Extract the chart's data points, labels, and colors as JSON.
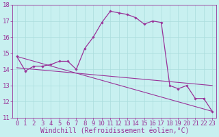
{
  "xlabel": "Windchill (Refroidissement éolien,°C)",
  "background_color": "#c8f0f0",
  "line_color": "#993399",
  "hours": [
    0,
    1,
    2,
    3,
    4,
    5,
    6,
    7,
    8,
    9,
    10,
    11,
    12,
    13,
    14,
    15,
    16,
    17,
    18,
    19,
    20,
    21,
    22,
    23
  ],
  "windchill": [
    14.8,
    13.9,
    14.2,
    14.2,
    14.3,
    14.5,
    14.5,
    14.0,
    15.3,
    16.0,
    16.9,
    17.6,
    17.5,
    17.4,
    17.2,
    16.8,
    17.0,
    16.9,
    13.0,
    12.8,
    13.0,
    12.2,
    12.2,
    11.4
  ],
  "trend1_start": 14.8,
  "trend1_end": 11.4,
  "trend2_start": 14.1,
  "trend2_end": 13.0,
  "ylim": [
    11,
    18
  ],
  "yticks": [
    11,
    12,
    13,
    14,
    15,
    16,
    17,
    18
  ],
  "xticks": [
    0,
    1,
    2,
    3,
    4,
    5,
    6,
    7,
    8,
    9,
    10,
    11,
    12,
    13,
    14,
    15,
    16,
    17,
    18,
    19,
    20,
    21,
    22,
    23
  ],
  "grid_color": "#aadddd",
  "tick_fontsize": 6.5,
  "xlabel_fontsize": 7
}
